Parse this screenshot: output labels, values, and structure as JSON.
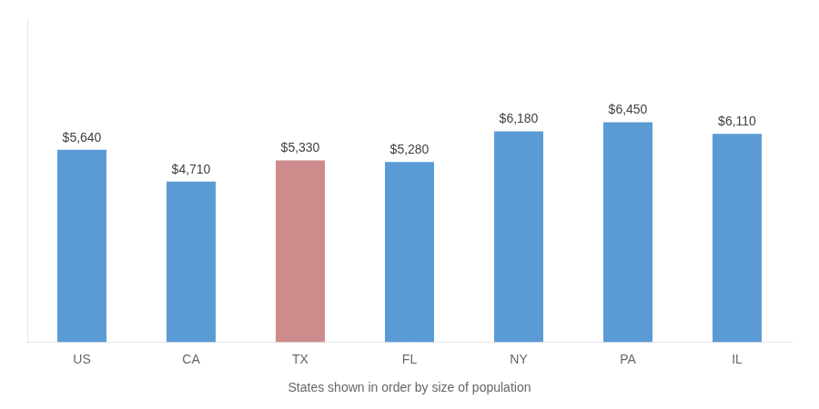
{
  "chart_data": {
    "type": "bar",
    "categories": [
      "US",
      "CA",
      "TX",
      "FL",
      "NY",
      "PA",
      "IL"
    ],
    "values": [
      5640,
      4710,
      5330,
      5280,
      6180,
      6450,
      6110
    ],
    "value_labels": [
      "$5,640",
      "$4,710",
      "$5,330",
      "$5,280",
      "$6,180",
      "$6,450",
      "$6,110"
    ],
    "data_labels": true,
    "colors": [
      "#5B9BD5",
      "#5B9BD5",
      "#CD8B8B",
      "#5B9BD5",
      "#5B9BD5",
      "#5B9BD5",
      "#5B9BD5"
    ],
    "xlabel": "States shown in order by size of population",
    "ylim": [
      0,
      9500
    ],
    "tick_labels": "x",
    "grid": false
  }
}
